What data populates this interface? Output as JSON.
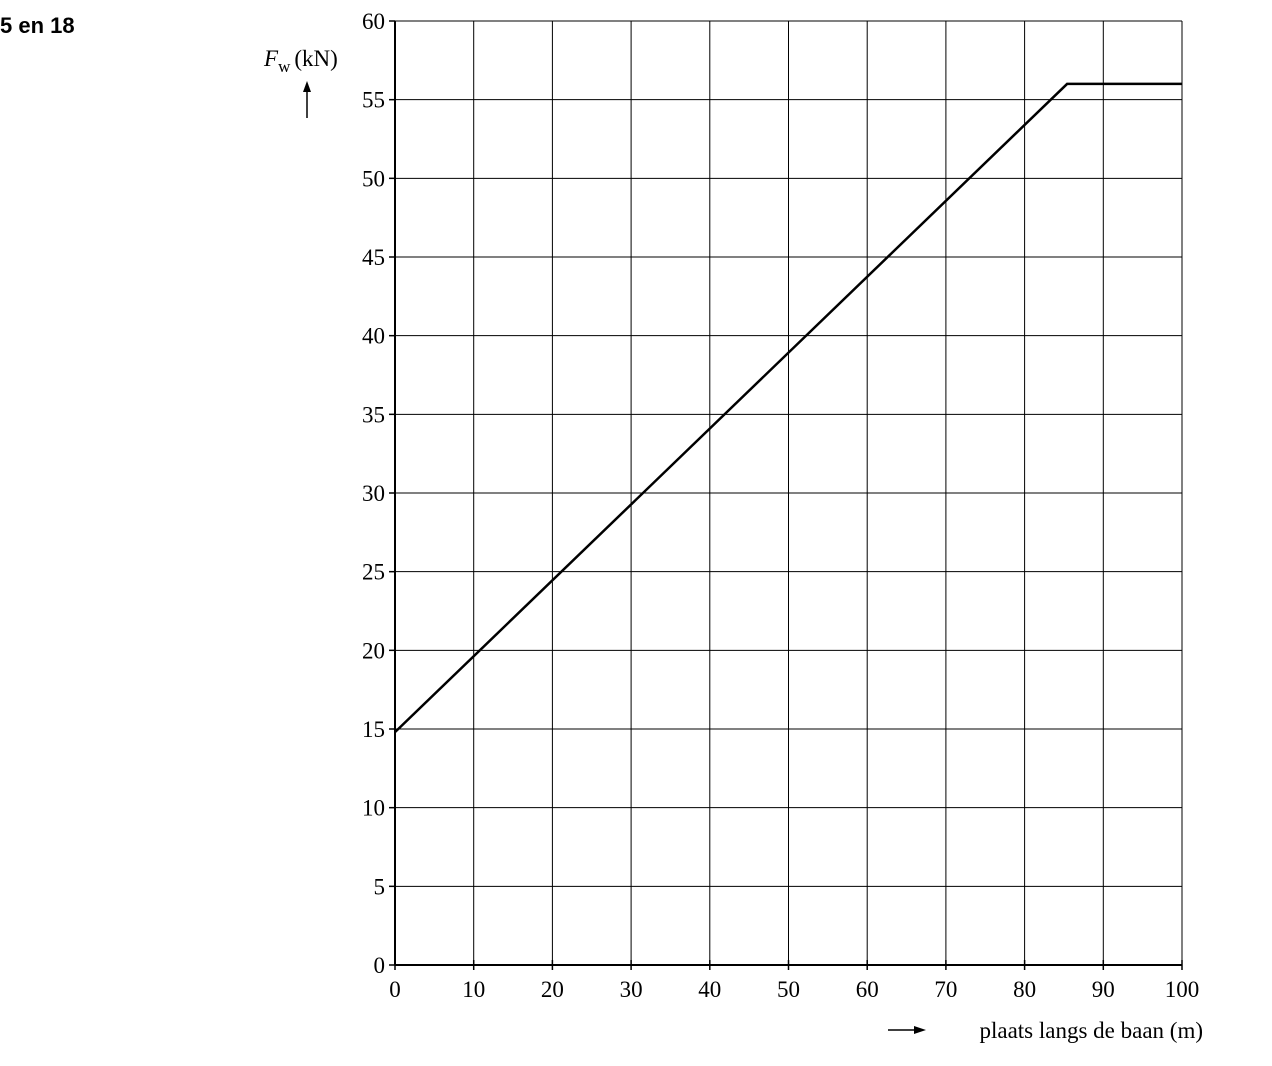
{
  "page_label": "5 en 18",
  "chart_data": {
    "type": "line",
    "ylabel": {
      "symbol": "F",
      "subscript": "w",
      "unit": "(kN)"
    },
    "xlabel": "plaats langs de baan (m)",
    "x": [
      0,
      85.4,
      100
    ],
    "series": [
      {
        "color": "#000000",
        "values": [
          14.8,
          56,
          56
        ]
      }
    ],
    "xlim": [
      0,
      100
    ],
    "xticks": [
      0,
      10,
      20,
      30,
      40,
      50,
      60,
      70,
      80,
      90,
      100
    ],
    "ylim": [
      0,
      60
    ],
    "yticks": [
      0,
      5,
      10,
      15,
      20,
      25,
      30,
      35,
      40,
      45,
      50,
      55,
      60
    ],
    "grid": true
  }
}
